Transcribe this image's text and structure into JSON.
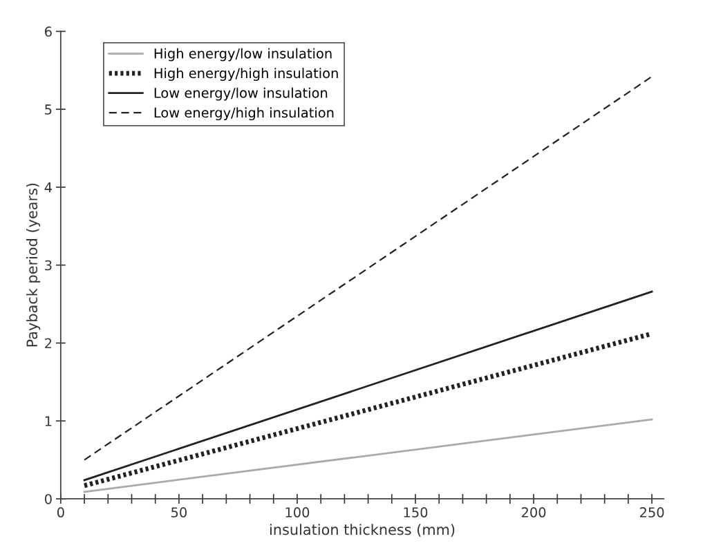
{
  "chart_data": {
    "type": "line",
    "xlabel": "insulation thickness (mm)",
    "ylabel": "Payback period (years)",
    "x": [
      10,
      250
    ],
    "series": [
      {
        "name": "High energy/low insulation",
        "color": "#aaaaaa",
        "values": [
          0.09,
          1.02
        ],
        "line_style": "solid"
      },
      {
        "name": "High energy/high insulation",
        "color": "#222222",
        "values": [
          0.17,
          2.12
        ],
        "line_style": "dotted"
      },
      {
        "name": "Low energy/low insulation",
        "color": "#222222",
        "values": [
          0.24,
          2.66
        ],
        "line_style": "solid"
      },
      {
        "name": "Low energy/high insulation",
        "color": "#222222",
        "values": [
          0.5,
          5.42
        ],
        "line_style": "dashed"
      }
    ],
    "xlim": [
      0,
      255
    ],
    "ylim": [
      0,
      6
    ],
    "xticks": [
      0,
      {
        "value": 10,
        "label": null
      },
      {
        "value": 20,
        "label": null
      },
      {
        "value": 30,
        "label": null
      },
      {
        "value": 40,
        "label": null
      },
      50,
      {
        "value": 60,
        "label": null
      },
      {
        "value": 70,
        "label": null
      },
      {
        "value": 80,
        "label": null
      },
      {
        "value": 90,
        "label": null
      },
      100,
      {
        "value": 110,
        "label": null
      },
      {
        "value": 120,
        "label": null
      },
      {
        "value": 130,
        "label": null
      },
      {
        "value": 140,
        "label": null
      },
      150,
      {
        "value": 160,
        "label": null
      },
      {
        "value": 170,
        "label": null
      },
      {
        "value": 180,
        "label": null
      },
      {
        "value": 190,
        "label": null
      },
      200,
      {
        "value": 210,
        "label": null
      },
      {
        "value": 220,
        "label": null
      },
      {
        "value": 230,
        "label": null
      },
      {
        "value": 240,
        "label": null
      },
      250
    ],
    "yticks": [
      0,
      1,
      2,
      3,
      4,
      5,
      6
    ],
    "grid": false,
    "legend": "top left",
    "marker": "none"
  }
}
